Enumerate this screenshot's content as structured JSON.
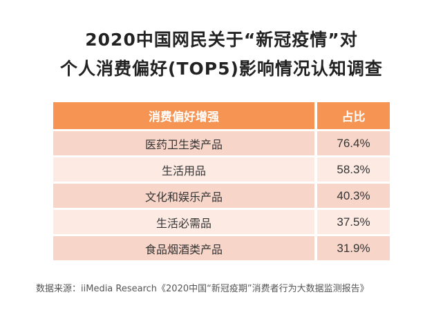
{
  "title": {
    "line1": "2020中国网民关于“新冠疫情”对",
    "line2": "个人消费偏好(TOP5)影响情况认知调查"
  },
  "table": {
    "headers": [
      "消费偏好增强",
      "占比"
    ],
    "rows": [
      {
        "label": "医药卫生类产品",
        "value": "76.4%"
      },
      {
        "label": "生活用品",
        "value": "58.3%"
      },
      {
        "label": "文化和娱乐产品",
        "value": "40.3%"
      },
      {
        "label": "生活必需品",
        "value": "37.5%"
      },
      {
        "label": "食品烟酒类产品",
        "value": "31.9%"
      }
    ]
  },
  "source": "数据来源：iiMedia Research《2020中国“新冠疫期”消费者行为大数据监测报告》",
  "colors": {
    "header": "#f69454",
    "row_dark": "#f8d5c9",
    "row_light": "#fdeae3"
  }
}
